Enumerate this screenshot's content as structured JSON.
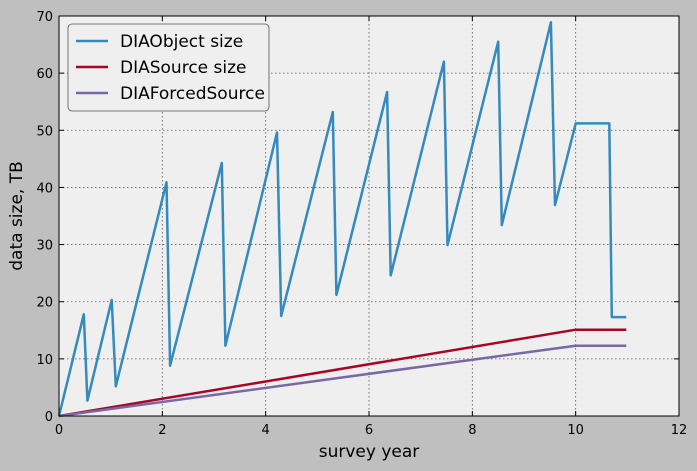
{
  "chart_data": {
    "type": "line",
    "xlabel": "survey year",
    "ylabel": "data size, TB",
    "xlim": [
      0,
      12
    ],
    "ylim": [
      0,
      70
    ],
    "xticks": [
      0,
      2,
      4,
      6,
      8,
      10,
      12
    ],
    "yticks": [
      0,
      10,
      20,
      30,
      40,
      50,
      60,
      70
    ],
    "grid": true,
    "legend_position": "top-left",
    "background_color": "#efefef",
    "figure_color": "#bfbfbf",
    "series": [
      {
        "name": "DIAObject size",
        "color": "#348abd",
        "x": [
          0,
          0.48,
          0.55,
          1.02,
          1.1,
          2.08,
          2.15,
          3.15,
          3.22,
          4.22,
          4.3,
          5.3,
          5.37,
          6.35,
          6.42,
          7.45,
          7.52,
          8.5,
          8.57,
          9.52,
          9.6,
          10.0,
          10.65,
          10.7,
          10.98
        ],
        "y": [
          0,
          17.8,
          2.7,
          20.3,
          5.2,
          40.9,
          8.8,
          44.3,
          12.3,
          49.6,
          17.5,
          53.2,
          21.2,
          56.7,
          24.6,
          62.0,
          29.9,
          65.5,
          33.4,
          68.9,
          36.9,
          51.2,
          51.2,
          17.3,
          17.3
        ]
      },
      {
        "name": "DIASource size",
        "color": "#a60628",
        "x": [
          0,
          10.0,
          10.98
        ],
        "y": [
          0,
          15.1,
          15.1
        ]
      },
      {
        "name": "DIAForcedSource",
        "color": "#7a68a6",
        "x": [
          0,
          10.0,
          10.98
        ],
        "y": [
          0,
          12.3,
          12.3
        ]
      }
    ]
  }
}
